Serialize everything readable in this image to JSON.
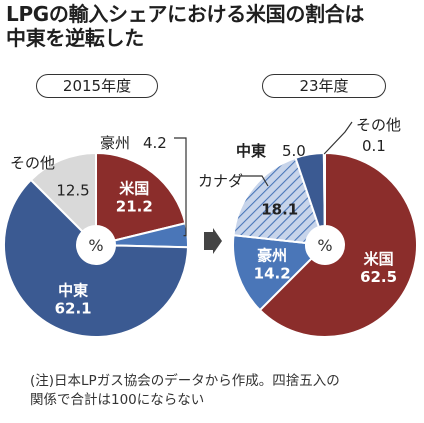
{
  "title_line1": "LPGの輸入シェアにおける米国の割合は",
  "title_line2": "中東を逆転した",
  "colors": {
    "usa": "#8b2d2b",
    "middle_east": "#3b5a92",
    "australia": "#4a76b8",
    "canada": "#c7d4ea",
    "canada_hatch": "#4a76b8",
    "others": "#d9d9d9"
  },
  "chart_data": [
    {
      "type": "pie",
      "title": "2015年度",
      "center_label": "%",
      "slices": [
        {
          "name": "米国",
          "value": 21.2
        },
        {
          "name": "豪州",
          "value": 4.2
        },
        {
          "name": "中東",
          "value": 62.1
        },
        {
          "name": "その他",
          "value": 12.5
        }
      ]
    },
    {
      "type": "pie",
      "title": "23年度",
      "center_label": "%",
      "slices": [
        {
          "name": "米国",
          "value": 62.5
        },
        {
          "name": "豪州",
          "value": 14.2
        },
        {
          "name": "カナダ",
          "value": 18.1
        },
        {
          "name": "中東",
          "value": 5.0
        },
        {
          "name": "その他",
          "value": 0.1
        }
      ]
    }
  ],
  "note_line1": "(注)日本LPガス協会のデータから作成。四捨五入の",
  "note_line2": "関係で合計は100にならない"
}
